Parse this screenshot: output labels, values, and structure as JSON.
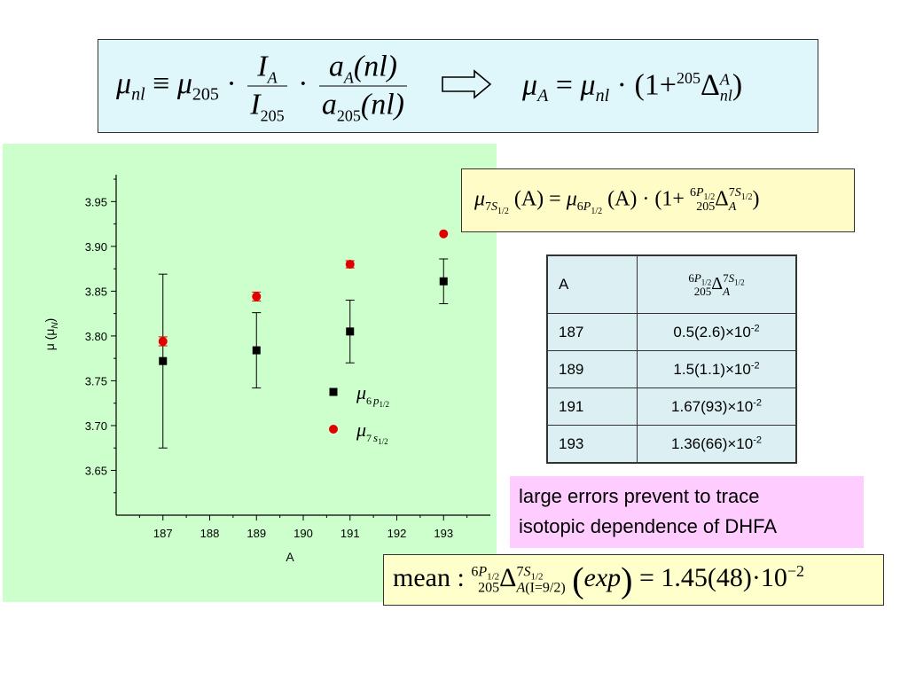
{
  "top_formula": {
    "mu": "μ",
    "nl": "nl",
    "equiv": "≡",
    "n205": "205",
    "dot": "·",
    "I": "I",
    "A": "A",
    "a": "a",
    "nl_paren": "(nl)",
    "arrow": "⟹",
    "eq": "=",
    "one_plus": "(1+",
    "delta": "Δ",
    "close": ")"
  },
  "formula_7s": {
    "mu": "μ",
    "s7": "7",
    "S": "S",
    "half": "1/2",
    "p6": "6",
    "P": "P",
    "argA": "(A)",
    "eq": "=",
    "dot": "·",
    "one_plus": "(1+",
    "n205": "205",
    "delta": "Δ",
    "A": "A",
    "close": ")"
  },
  "table": {
    "header_a": "A",
    "rows": [
      {
        "a": "187",
        "value": "0.5(2.6)×10",
        "exp": "-2"
      },
      {
        "a": "189",
        "value": "1.5(1.1)×10",
        "exp": "-2"
      },
      {
        "a": "191",
        "value": "1.67(93)×10",
        "exp": "-2"
      },
      {
        "a": "193",
        "value": "1.36(66)×10",
        "exp": "-2"
      }
    ]
  },
  "note": {
    "line1": "large errors prevent to trace",
    "line2": "isotopic dependence of DHFA"
  },
  "mean_formula": {
    "label": "mean :",
    "n205": "205",
    "delta": "Δ",
    "A": "A",
    "I_part": "(I=9/2)",
    "exp": "exp",
    "eq": "=",
    "value": "1.45(48)·10",
    "power": "−2"
  },
  "chart_data": {
    "type": "scatter",
    "xlabel": "A",
    "ylabel": "μ (μN)",
    "xlim": [
      186,
      194
    ],
    "ylim": [
      3.6,
      3.98
    ],
    "x_ticks": [
      187,
      188,
      189,
      190,
      191,
      192,
      193
    ],
    "y_ticks": [
      3.65,
      3.7,
      3.75,
      3.8,
      3.85,
      3.9,
      3.95
    ],
    "x_tick_labels": [
      "187",
      "188",
      "189",
      "190",
      "191",
      "192",
      "193"
    ],
    "y_tick_labels": [
      "3.65",
      "3.70",
      "3.75",
      "3.80",
      "3.85",
      "3.90",
      "3.95"
    ],
    "grid": false,
    "legend_position": "lower-right",
    "series": [
      {
        "name": "μ6p1/2",
        "marker": "square",
        "color": "#000000",
        "points": [
          {
            "x": 187,
            "y": 3.772,
            "err": 0.097
          },
          {
            "x": 189,
            "y": 3.784,
            "err": 0.042
          },
          {
            "x": 191,
            "y": 3.805,
            "err": 0.035
          },
          {
            "x": 193,
            "y": 3.861,
            "err": 0.025
          }
        ]
      },
      {
        "name": "μ7s1/2",
        "marker": "circle",
        "color": "#e00000",
        "points": [
          {
            "x": 187,
            "y": 3.794,
            "err": 0.005
          },
          {
            "x": 189,
            "y": 3.844,
            "err": 0.005
          },
          {
            "x": 191,
            "y": 3.88,
            "err": 0.004
          },
          {
            "x": 193,
            "y": 3.914,
            "err": 0.0
          }
        ]
      }
    ]
  }
}
